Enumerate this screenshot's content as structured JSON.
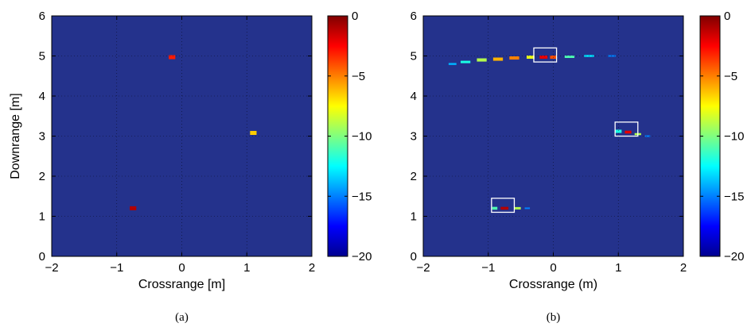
{
  "colors": {
    "background": "#24328c",
    "grid": "#000000",
    "box": "#ffffff"
  },
  "colorbar": {
    "range": [
      -20,
      0
    ],
    "ticks": [
      0,
      -5,
      -10,
      -15,
      -20
    ],
    "tick_labels": [
      "0",
      "−5",
      "−10",
      "−15",
      "−20"
    ],
    "colormap": "jet"
  },
  "chart_data": [
    {
      "type": "heatmap",
      "caption": "(a)",
      "xlabel": "Crossrange [m]",
      "ylabel": "Downrange [m]",
      "xlim": [
        -2,
        2
      ],
      "ylim": [
        0,
        6
      ],
      "xticks": [
        -2,
        -1,
        0,
        1,
        2
      ],
      "xtick_labels": [
        "−2",
        "−1",
        "0",
        "1",
        "2"
      ],
      "yticks": [
        0,
        1,
        2,
        3,
        4,
        5,
        6
      ],
      "ytick_labels": [
        "0",
        "1",
        "2",
        "3",
        "4",
        "5",
        "6"
      ],
      "grid": true,
      "blobs": [
        {
          "x": -0.15,
          "y": 4.97,
          "dx": 0.1,
          "dy": 0.1,
          "value": -3
        },
        {
          "x": 1.1,
          "y": 3.08,
          "dx": 0.1,
          "dy": 0.1,
          "value": -6.5
        },
        {
          "x": -0.75,
          "y": 1.2,
          "dx": 0.1,
          "dy": 0.1,
          "value": -1
        }
      ],
      "boxes": []
    },
    {
      "type": "heatmap",
      "caption": "(b)",
      "xlabel": "Crossrange (m)",
      "ylabel": "",
      "xlim": [
        -2,
        2
      ],
      "ylim": [
        0,
        6
      ],
      "xticks": [
        -2,
        -1,
        0,
        1,
        2
      ],
      "xtick_labels": [
        "−2",
        "−1",
        "0",
        "1",
        "2"
      ],
      "yticks": [
        0,
        1,
        2,
        3,
        4,
        5,
        6
      ],
      "ytick_labels": [
        "0",
        "1",
        "2",
        "3",
        "4",
        "5",
        "6"
      ],
      "grid": true,
      "blobs": [
        {
          "x": -1.55,
          "y": 4.8,
          "dx": 0.12,
          "dy": 0.05,
          "value": -14
        },
        {
          "x": -1.35,
          "y": 4.85,
          "dx": 0.15,
          "dy": 0.06,
          "value": -12
        },
        {
          "x": -1.1,
          "y": 4.9,
          "dx": 0.15,
          "dy": 0.08,
          "value": -9
        },
        {
          "x": -0.85,
          "y": 4.92,
          "dx": 0.15,
          "dy": 0.08,
          "value": -6
        },
        {
          "x": -0.6,
          "y": 4.95,
          "dx": 0.15,
          "dy": 0.08,
          "value": -5
        },
        {
          "x": -0.35,
          "y": 4.97,
          "dx": 0.12,
          "dy": 0.08,
          "value": -8
        },
        {
          "x": -0.15,
          "y": 4.97,
          "dx": 0.12,
          "dy": 0.08,
          "value": -2
        },
        {
          "x": 0.0,
          "y": 4.97,
          "dx": 0.1,
          "dy": 0.08,
          "value": -4
        },
        {
          "x": 0.25,
          "y": 4.98,
          "dx": 0.15,
          "dy": 0.06,
          "value": -11
        },
        {
          "x": 0.55,
          "y": 5.0,
          "dx": 0.15,
          "dy": 0.05,
          "value": -13
        },
        {
          "x": 0.9,
          "y": 5.0,
          "dx": 0.12,
          "dy": 0.04,
          "value": -15
        },
        {
          "x": 1.0,
          "y": 3.12,
          "dx": 0.1,
          "dy": 0.08,
          "value": -12
        },
        {
          "x": 1.15,
          "y": 3.1,
          "dx": 0.1,
          "dy": 0.07,
          "value": -2
        },
        {
          "x": 1.3,
          "y": 3.05,
          "dx": 0.1,
          "dy": 0.05,
          "value": -9
        },
        {
          "x": 1.45,
          "y": 3.0,
          "dx": 0.08,
          "dy": 0.04,
          "value": -15
        },
        {
          "x": -0.9,
          "y": 1.2,
          "dx": 0.08,
          "dy": 0.07,
          "value": -11
        },
        {
          "x": -0.75,
          "y": 1.2,
          "dx": 0.12,
          "dy": 0.07,
          "value": -1
        },
        {
          "x": -0.55,
          "y": 1.2,
          "dx": 0.1,
          "dy": 0.06,
          "value": -9
        },
        {
          "x": -0.4,
          "y": 1.2,
          "dx": 0.08,
          "dy": 0.04,
          "value": -15
        }
      ],
      "boxes": [
        {
          "x0": -0.3,
          "x1": 0.05,
          "y0": 4.85,
          "y1": 5.2
        },
        {
          "x0": 0.95,
          "x1": 1.3,
          "y0": 3.0,
          "y1": 3.35
        },
        {
          "x0": -0.95,
          "x1": -0.6,
          "y0": 1.1,
          "y1": 1.45
        }
      ]
    }
  ]
}
